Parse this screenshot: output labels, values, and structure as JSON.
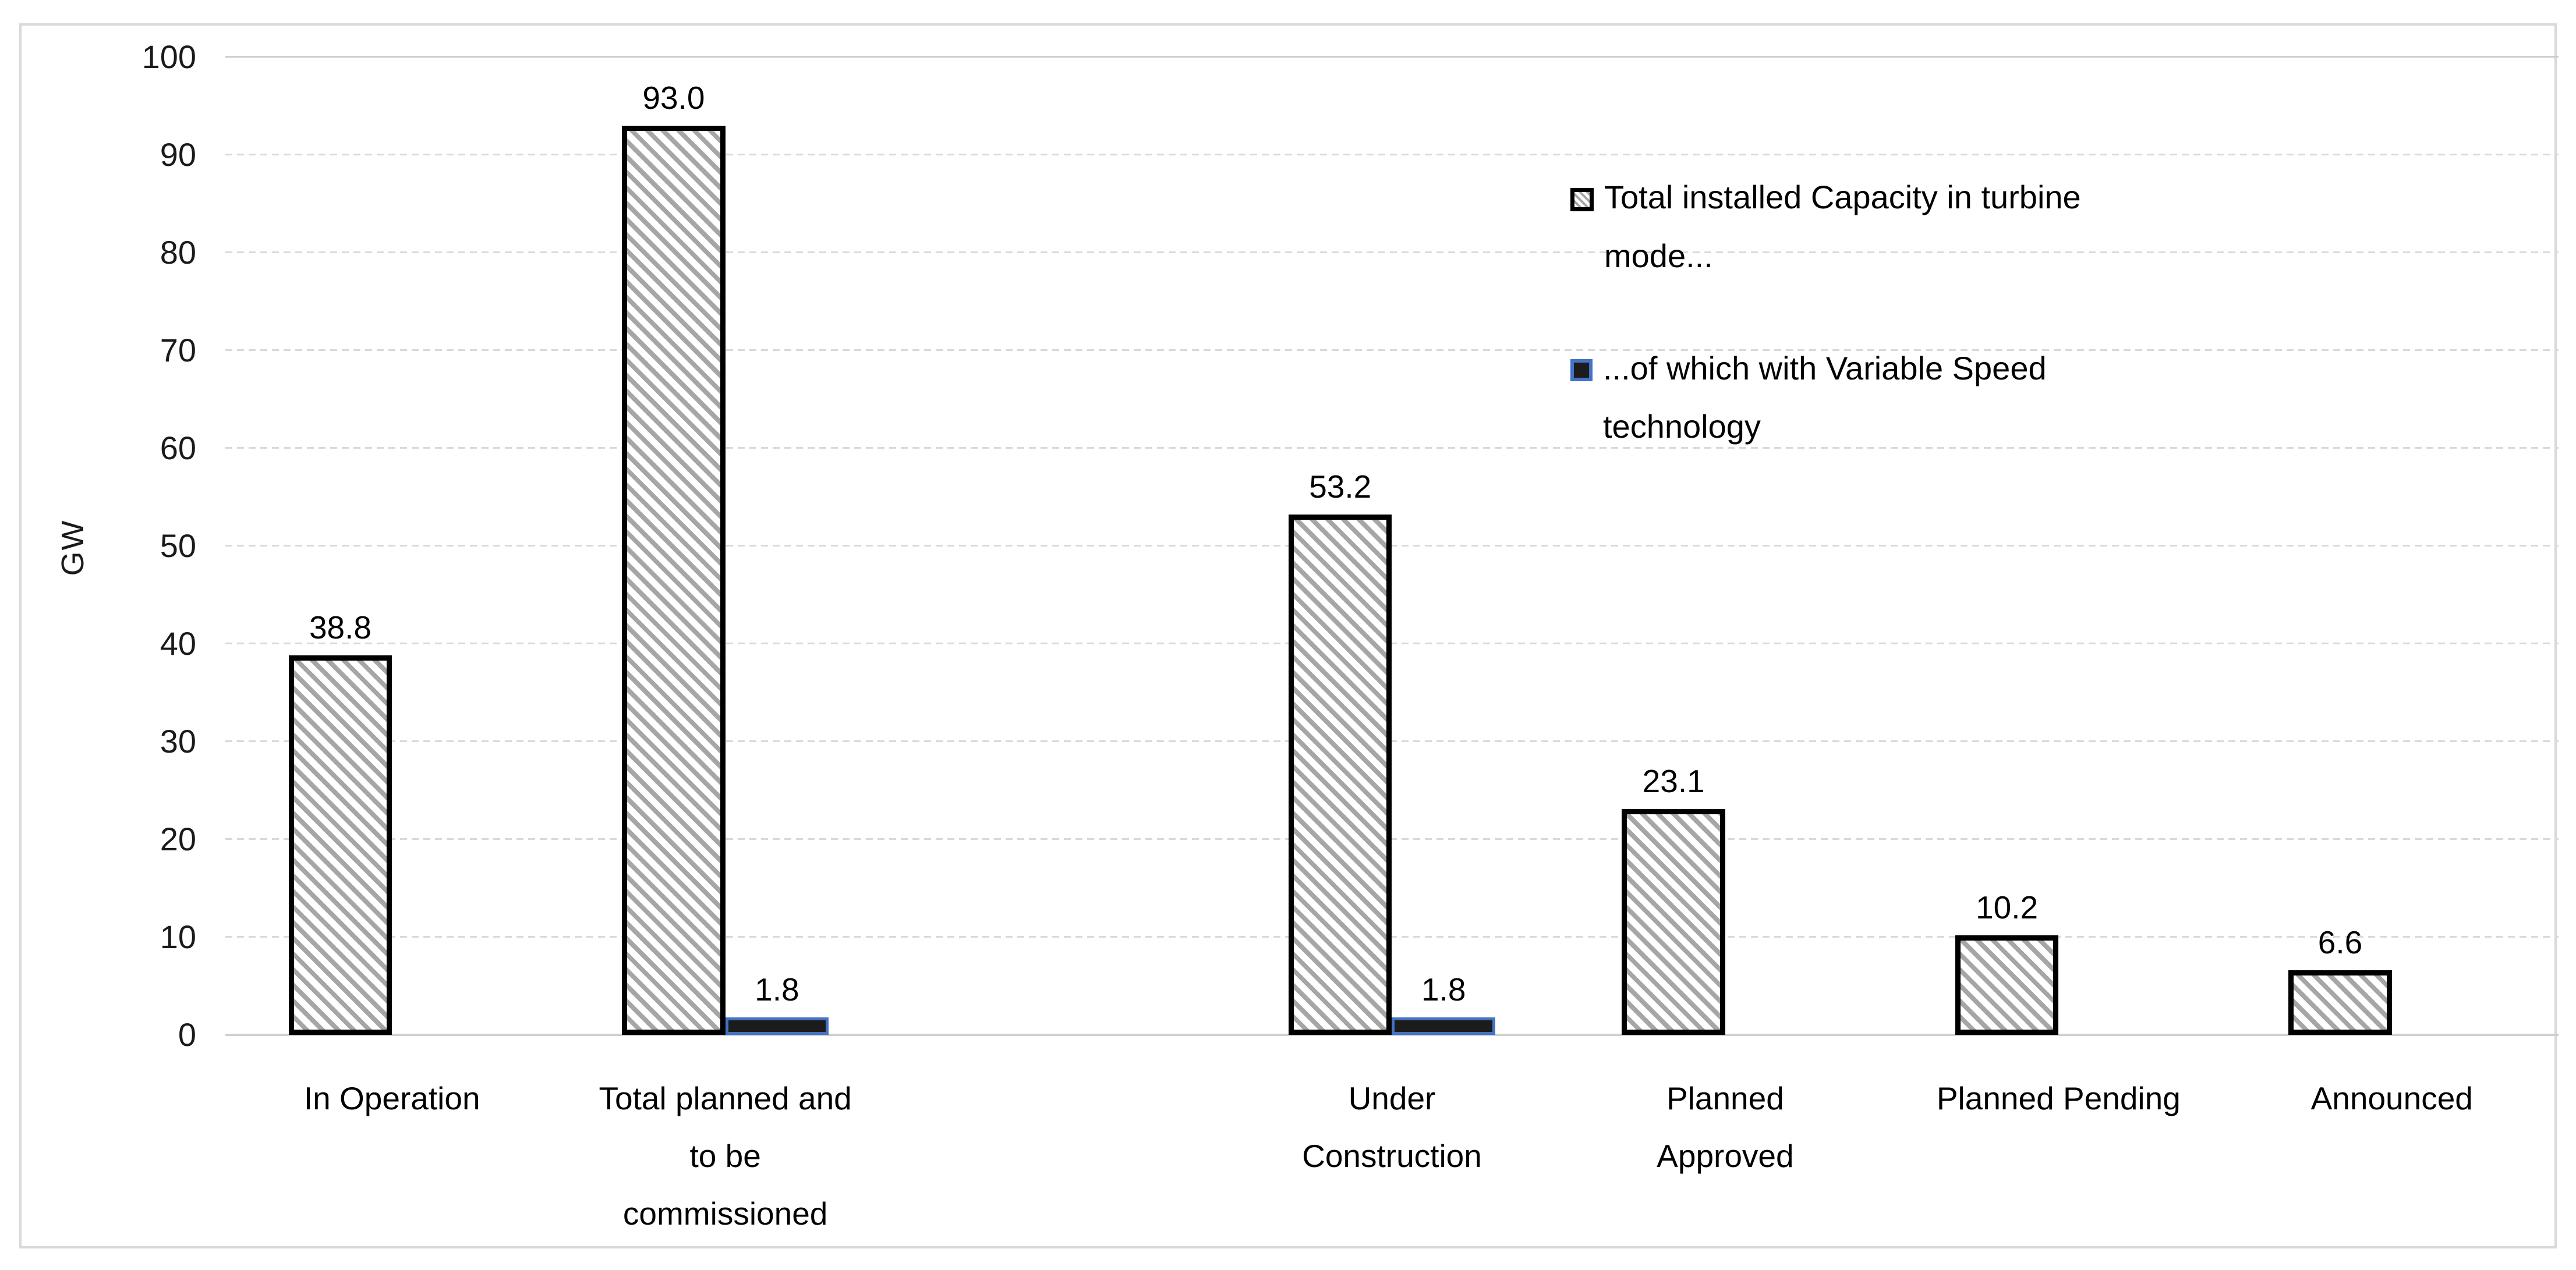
{
  "chart_data": {
    "type": "bar",
    "title": "",
    "xlabel": "",
    "ylabel": "GW",
    "ylim": [
      0,
      100
    ],
    "yticks": [
      0,
      10,
      20,
      30,
      40,
      50,
      60,
      70,
      80,
      90,
      100
    ],
    "grid": "horizontal-dashed",
    "categories": [
      "In Operation",
      "Total planned and to be commissioned",
      "",
      "Under Construction",
      "Planned Approved",
      "Planned Pending",
      "Announced"
    ],
    "category_label_lines": [
      [
        "In Operation"
      ],
      [
        "Total planned and",
        "to be",
        "commissioned"
      ],
      [],
      [
        "Under",
        "Construction"
      ],
      [
        "Planned",
        "Approved"
      ],
      [
        "Planned Pending"
      ],
      [
        "Announced"
      ]
    ],
    "series": [
      {
        "name": "Total installed Capacity in turbine mode...",
        "style": "hatched",
        "values": [
          38.8,
          93.0,
          null,
          53.2,
          23.1,
          10.2,
          6.6
        ],
        "labels": [
          "38.8",
          "93.0",
          null,
          "53.2",
          "23.1",
          "10.2",
          "6.6"
        ]
      },
      {
        "name": "...of which with Variable Speed technology",
        "style": "solid-black",
        "values": [
          null,
          1.8,
          null,
          1.8,
          null,
          null,
          null
        ],
        "labels": [
          null,
          "1.8",
          null,
          "1.8",
          null,
          null,
          null
        ]
      }
    ],
    "legend": {
      "position": "upper-right-inside",
      "items": [
        {
          "marker": "hatched",
          "lines": [
            "Total installed Capacity in turbine",
            "mode..."
          ]
        },
        {
          "marker": "solid-black",
          "lines": [
            "...of which with Variable Speed",
            "technology"
          ]
        }
      ]
    },
    "colors": {
      "background": "#ffffff",
      "chart_border": "#d9d9d9",
      "gridline": "#d9d9d9",
      "hatch_stripe": "#a6a6a6",
      "hatched_bar_border": "#000000",
      "solid_bar_fill": "#1c1c1c",
      "solid_bar_border": "#4472c4",
      "text": "#000000"
    }
  }
}
